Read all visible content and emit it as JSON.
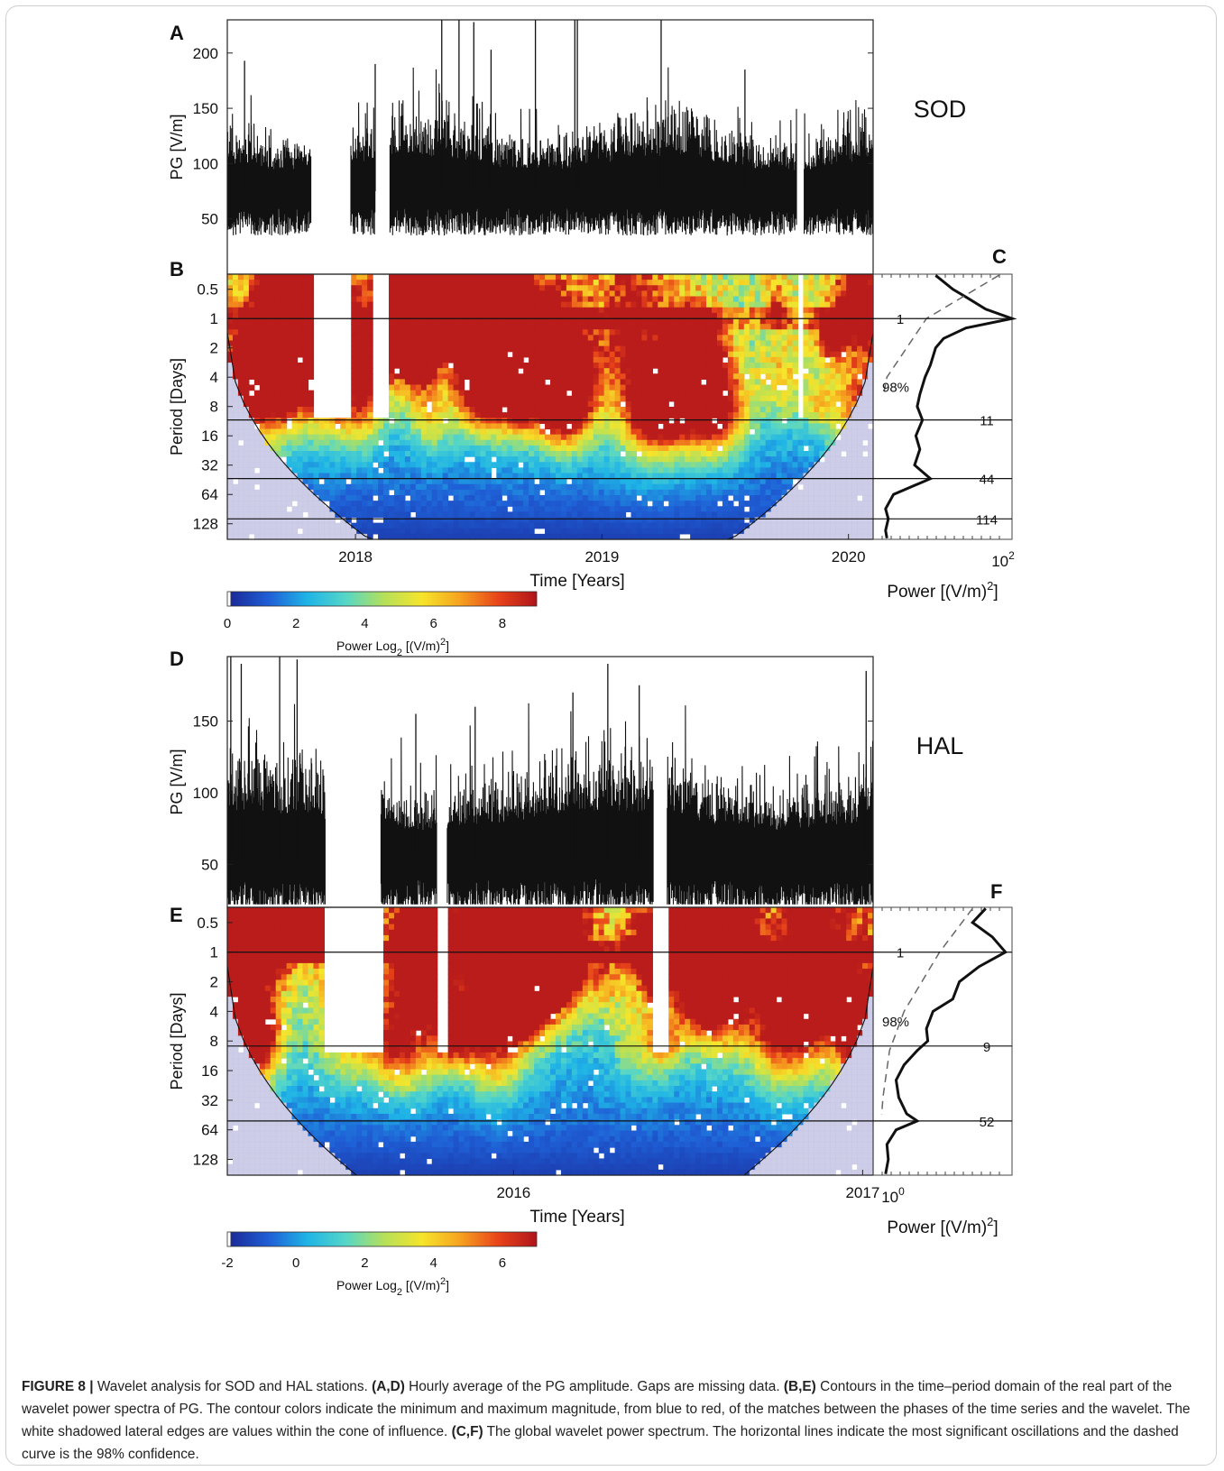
{
  "caption": {
    "figure_label": "FIGURE 8 |",
    "segments": [
      {
        "t": " Wavelet analysis for SOD and HAL stations. ",
        "b": false
      },
      {
        "t": "(A,D)",
        "b": true
      },
      {
        "t": " Hourly average of the PG amplitude. Gaps are missing data. ",
        "b": false
      },
      {
        "t": "(B,E)",
        "b": true
      },
      {
        "t": " Contours in the time–period domain of the real part of the wavelet power spectra of PG. The contour colors indicate the minimum and maximum magnitude, from blue to red, of the matches between the phases of the time series and the wavelet. The white shadowed lateral edges are values within the cone of influence. ",
        "b": false
      },
      {
        "t": "(C,F)",
        "b": true
      },
      {
        "t": " The global wavelet power spectrum. The horizontal lines indicate the most significant oscillations and the dashed curve is the 98% confidence.",
        "b": false
      }
    ]
  },
  "colors": {
    "colormap": [
      "#ffffff",
      "#1a2a9a",
      "#1f5fd6",
      "#1fb4e6",
      "#55d6c8",
      "#b4e05a",
      "#f6e52a",
      "#f6a21f",
      "#e8431a",
      "#b0141a"
    ],
    "line": "#111111",
    "coi_shade": "#c8c8e6"
  },
  "chart_data": [
    {
      "panel": "A",
      "type": "line",
      "station_label": "SOD",
      "ylabel": "PG [V/m]",
      "yticks": [
        50,
        100,
        150,
        200
      ],
      "ylim": [
        0,
        230
      ],
      "xlim": [
        2017.48,
        2020.1
      ],
      "gaps": [
        [
          2017.82,
          2017.98
        ],
        [
          2018.08,
          2018.14
        ],
        [
          2019.79,
          2019.82
        ]
      ],
      "baseline": 75,
      "peaks": [
        {
          "x": 2018.35,
          "y": 230
        },
        {
          "x": 2018.42,
          "y": 230
        },
        {
          "x": 2018.48,
          "y": 228
        },
        {
          "x": 2018.73,
          "y": 230
        },
        {
          "x": 2018.89,
          "y": 230
        },
        {
          "x": 2018.9,
          "y": 230
        },
        {
          "x": 2019.24,
          "y": 230
        },
        {
          "x": 2018.55,
          "y": 203
        },
        {
          "x": 2018.08,
          "y": 190
        },
        {
          "x": 2017.55,
          "y": 193
        },
        {
          "x": 2019.58,
          "y": 185
        }
      ]
    },
    {
      "panel": "B",
      "type": "heatmap",
      "xlabel": "Time [Years]",
      "ylabel": "Period [Days]",
      "xticks": [
        2018,
        2019,
        2020
      ],
      "xlim": [
        2017.48,
        2020.1
      ],
      "yticks": [
        0.5,
        1,
        2,
        4,
        8,
        16,
        32,
        64,
        128
      ],
      "ylim": [
        0.35,
        185
      ],
      "y_scale": "log2",
      "significant_periods": [
        1,
        11,
        44,
        114
      ],
      "colorbar": {
        "label_main": "Power Log",
        "label_sub": "2",
        "label_unit": "[(V/m)",
        "label_sup": "2",
        "label_end": "]",
        "ticks": [
          0,
          2,
          4,
          6,
          8
        ],
        "range": [
          0,
          9
        ]
      }
    },
    {
      "panel": "C",
      "type": "line",
      "xlabel_main": "Power [(V/m)",
      "xlabel_sup": "2",
      "xlabel_end": "]",
      "x_scale": "log",
      "xtick_base": "10",
      "xtick_exp": "2",
      "confidence_label": "98%",
      "period_labels": [
        "1",
        "11",
        "44",
        "114"
      ],
      "spectrum": [
        [
          0.36,
          42
        ],
        [
          0.5,
          55
        ],
        [
          0.6,
          65
        ],
        [
          0.8,
          80
        ],
        [
          1.0,
          100
        ],
        [
          1.25,
          65
        ],
        [
          1.6,
          48
        ],
        [
          2.0,
          42
        ],
        [
          3.0,
          38
        ],
        [
          4.0,
          34
        ],
        [
          6.0,
          30
        ],
        [
          8.0,
          28
        ],
        [
          11.0,
          32
        ],
        [
          16.0,
          27
        ],
        [
          22.0,
          30
        ],
        [
          32.0,
          26
        ],
        [
          44.0,
          38
        ],
        [
          64.0,
          10
        ],
        [
          90.0,
          4
        ],
        [
          114.0,
          6
        ],
        [
          150.0,
          4
        ],
        [
          180.0,
          5
        ]
      ],
      "confidence": [
        [
          0.36,
          90
        ],
        [
          1.0,
          35
        ],
        [
          4.0,
          5
        ],
        [
          5.5,
          3
        ]
      ]
    },
    {
      "panel": "D",
      "type": "line",
      "station_label": "HAL",
      "ylabel": "PG [V/m]",
      "yticks": [
        50,
        100,
        150
      ],
      "ylim": [
        20,
        195
      ],
      "xlim": [
        2015.18,
        2017.03
      ],
      "gaps": [
        [
          2015.46,
          2015.62
        ],
        [
          2015.78,
          2015.81
        ],
        [
          2016.4,
          2016.44
        ]
      ],
      "baseline": 55,
      "peaks": [
        {
          "x": 2015.19,
          "y": 195
        },
        {
          "x": 2015.22,
          "y": 190
        },
        {
          "x": 2015.33,
          "y": 195
        },
        {
          "x": 2015.38,
          "y": 193
        },
        {
          "x": 2016.27,
          "y": 190
        },
        {
          "x": 2016.17,
          "y": 170
        },
        {
          "x": 2016.36,
          "y": 175
        },
        {
          "x": 2017.01,
          "y": 185
        },
        {
          "x": 2015.89,
          "y": 160
        },
        {
          "x": 2015.72,
          "y": 155
        }
      ]
    },
    {
      "panel": "E",
      "type": "heatmap",
      "xlabel": "Time [Years]",
      "ylabel": "Period [Days]",
      "xticks": [
        2016,
        2017
      ],
      "xlim": [
        2015.18,
        2017.03
      ],
      "yticks": [
        0.5,
        1,
        2,
        4,
        8,
        16,
        32,
        64,
        128
      ],
      "ylim": [
        0.35,
        185
      ],
      "y_scale": "log2",
      "significant_periods": [
        1,
        9,
        52
      ],
      "colorbar": {
        "label_main": "Power Log",
        "label_sub": "2",
        "label_unit": "[(V/m)",
        "label_sup": "2",
        "label_end": "]",
        "ticks": [
          -2,
          0,
          2,
          4,
          6
        ],
        "range": [
          -2,
          7
        ]
      }
    },
    {
      "panel": "F",
      "type": "line",
      "xlabel_main": "Power [(V/m)",
      "xlabel_sup": "2",
      "xlabel_end": "]",
      "x_scale": "log",
      "xtick_base": "10",
      "xtick_exp": "0",
      "confidence_label": "98%",
      "period_labels": [
        "1",
        "9",
        "52"
      ],
      "spectrum": [
        [
          0.36,
          80
        ],
        [
          0.5,
          70
        ],
        [
          0.7,
          85
        ],
        [
          1.0,
          95
        ],
        [
          1.4,
          75
        ],
        [
          2.0,
          60
        ],
        [
          3.0,
          55
        ],
        [
          4.0,
          40
        ],
        [
          6.0,
          35
        ],
        [
          8.0,
          36
        ],
        [
          10.0,
          28
        ],
        [
          14.0,
          18
        ],
        [
          20.0,
          12
        ],
        [
          30.0,
          14
        ],
        [
          44.0,
          20
        ],
        [
          52.0,
          28
        ],
        [
          64.0,
          12
        ],
        [
          90.0,
          5
        ],
        [
          128.0,
          6
        ],
        [
          180.0,
          4
        ]
      ],
      "confidence": [
        [
          0.36,
          70
        ],
        [
          1.0,
          45
        ],
        [
          4.0,
          18
        ],
        [
          10.0,
          7
        ],
        [
          30.0,
          2
        ],
        [
          45.0,
          1
        ]
      ]
    }
  ]
}
